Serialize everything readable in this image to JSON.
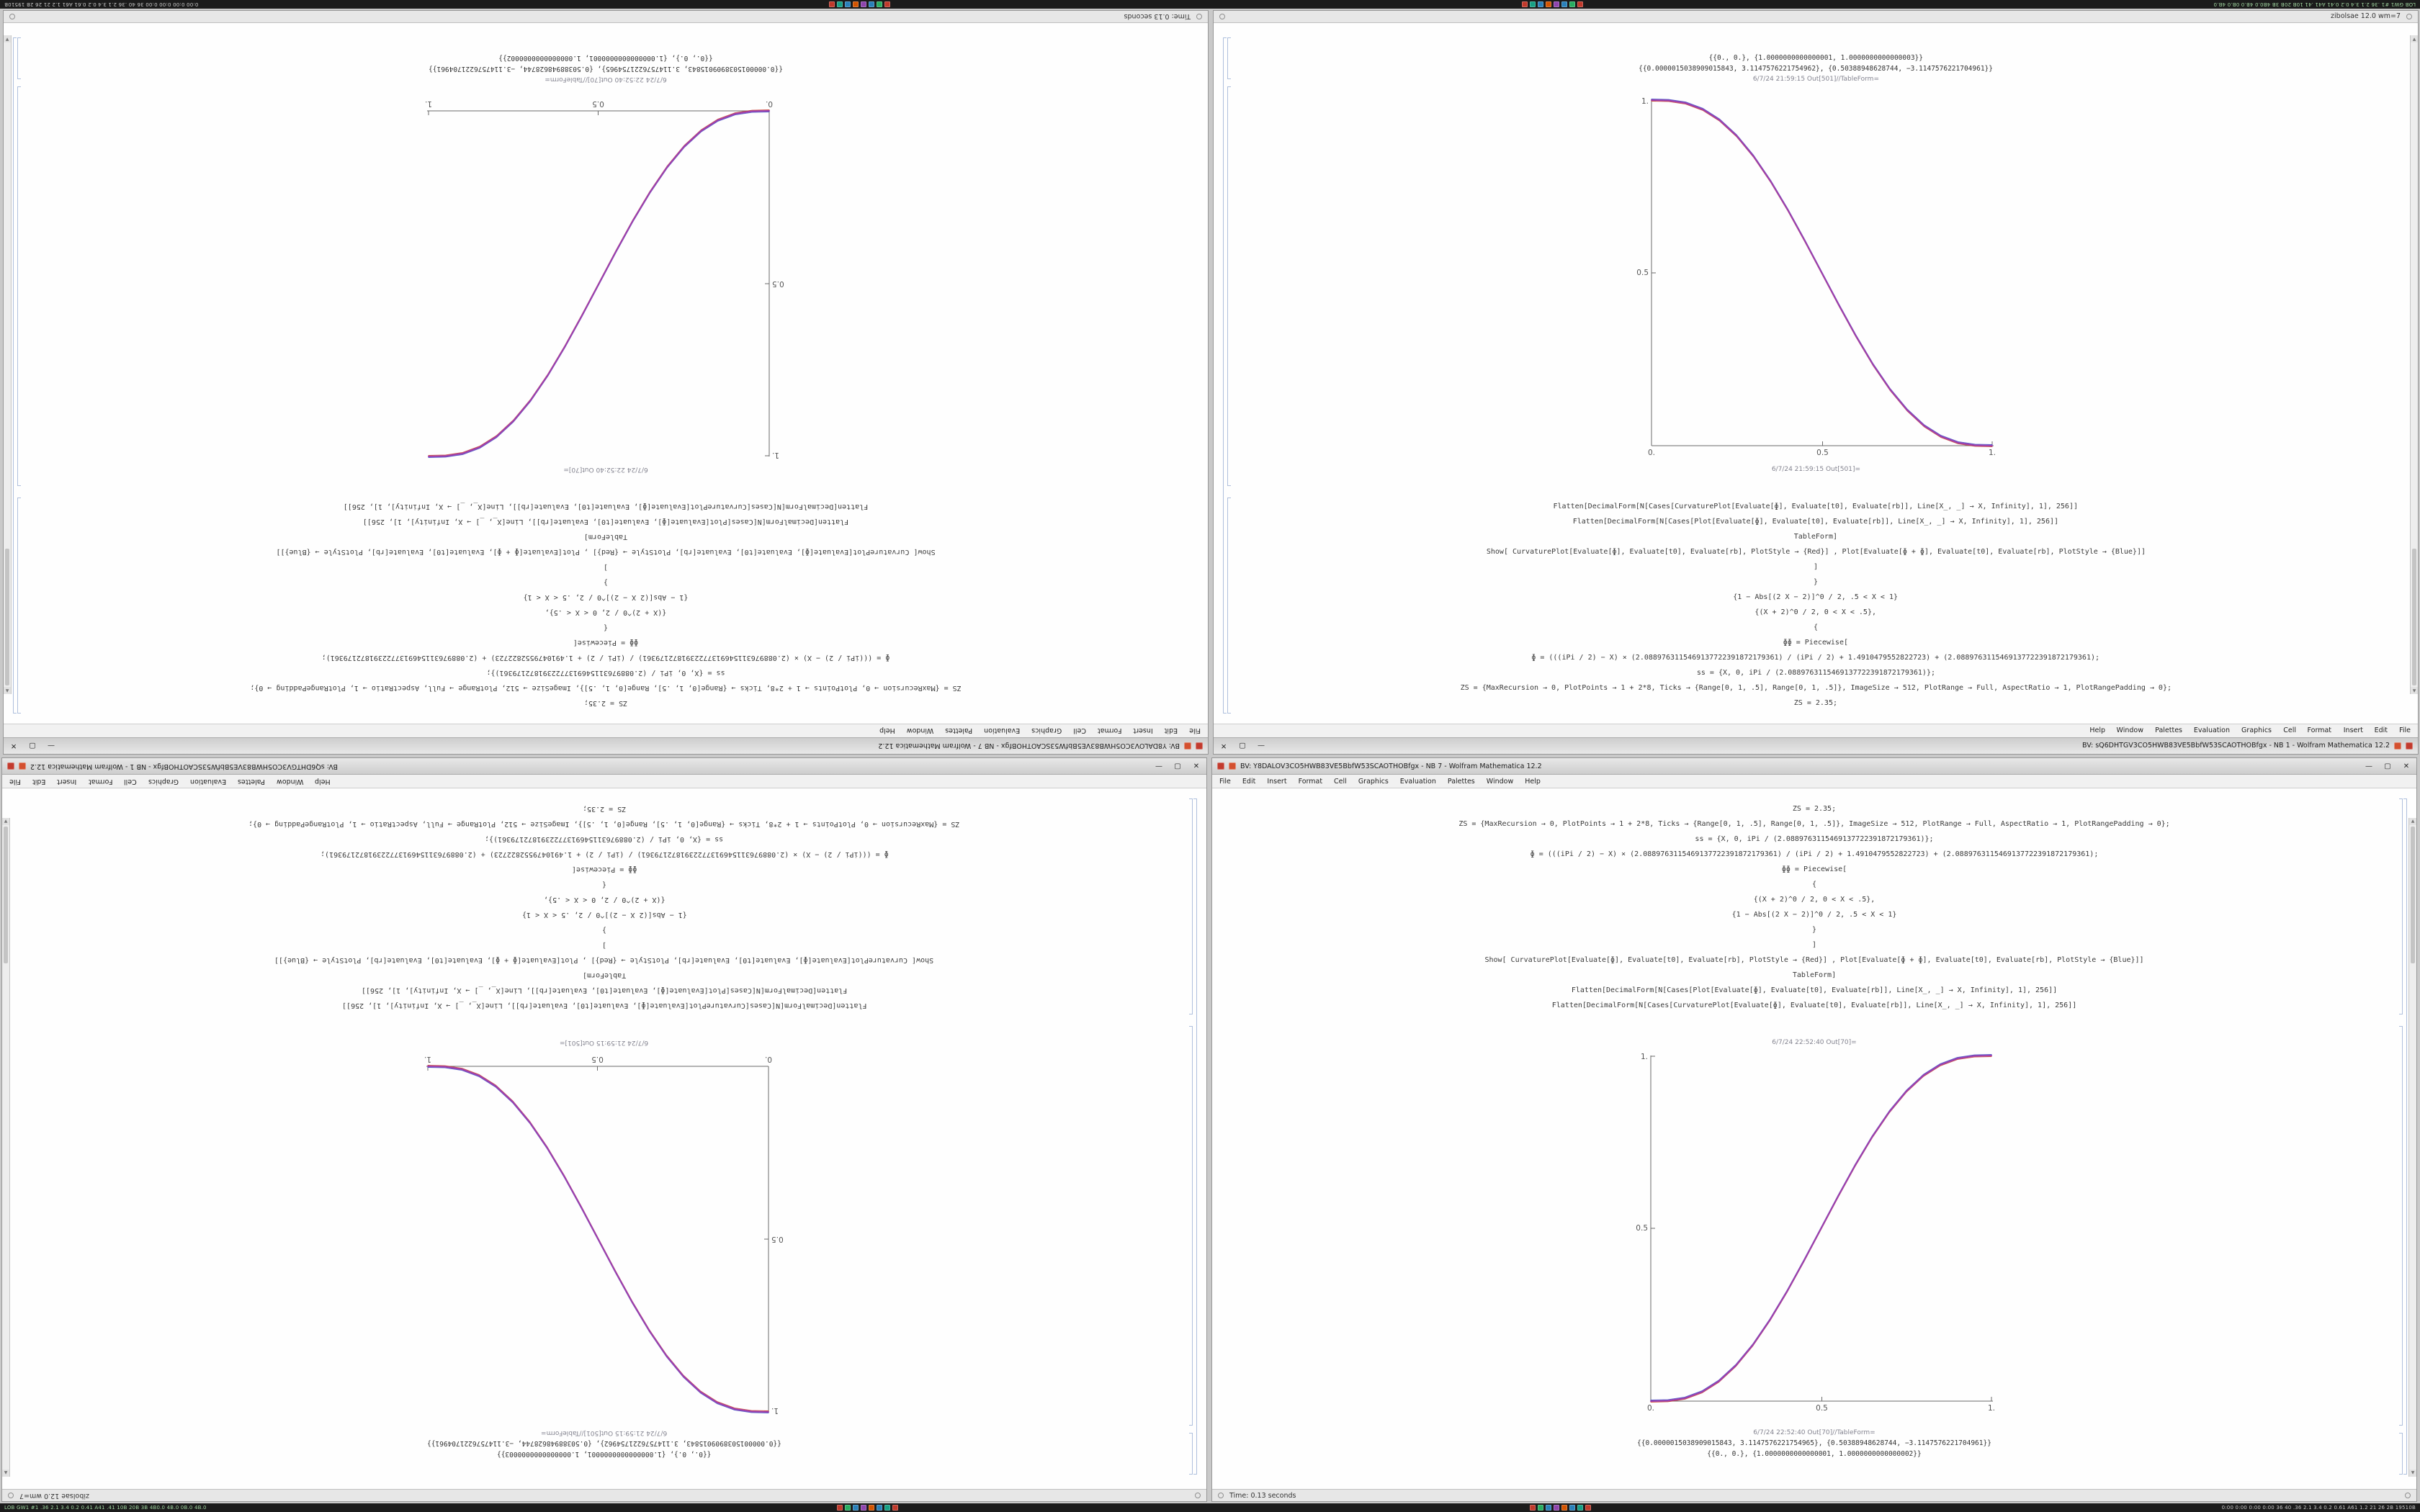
{
  "taskbar": {
    "left_text": "LOB GW1 #1 .36 2.1 3.4 0.2 0.41 A41 .41 10B 20B 3B 4B0.0 4B.0 0B.0 4B.0",
    "right_text": "0:00 0:00 0:00 0:00 36 40 .36 2.1 3.4 0.2 0.61 A61 1.2 21 26 2B 19510B",
    "icons": [
      {
        "name": "app-icon-1",
        "color": "#c0392b"
      },
      {
        "name": "app-icon-2",
        "color": "#27ae60"
      },
      {
        "name": "app-icon-3",
        "color": "#2980b9"
      },
      {
        "name": "app-icon-4",
        "color": "#8e44ad"
      },
      {
        "name": "app-icon-5",
        "color": "#d35400"
      },
      {
        "name": "app-icon-6",
        "color": "#2980b9"
      },
      {
        "name": "app-icon-7",
        "color": "#16a085"
      },
      {
        "name": "app-icon-8",
        "color": "#c0392b"
      }
    ]
  },
  "menu": {
    "items": [
      "File",
      "Edit",
      "Insert",
      "Format",
      "Cell",
      "Graphics",
      "Evaluation",
      "Palettes",
      "Window",
      "Help"
    ]
  },
  "controls": {
    "minimize": "—",
    "maximize": "▢",
    "close": "✕"
  },
  "window_a": {
    "title": "BV: sQ6DHTGV3CO5HWB83VE5BbfW53SCAOTHOBfgx - NB 1 - Wolfram Mathematica 12.2",
    "status_left": "zibolsae 12.0 wm=7",
    "out_label": "6/7/24 21:59:15 Out[501]=",
    "tableform_label": "6/7/24 21:59:15 Out[501]//TableForm=",
    "code_lines": [
      "ZS = 2.35;",
      "ZS = {MaxRecursion → 0, PlotPoints → 1 + 2*8, Ticks → {Range[0, 1, .5], Range[0, 1, .5]}, ImageSize → 512, PlotRange → Full, AspectRatio → 1, PlotRangePadding → 0};",
      "ss = {X, 0, iPi / (2.0889763115469137722391872179361)};",
      "ɸ = (((iPi / 2) − X) × (2.0889763115469137722391872179361) / (iPi / 2) + 1.4910479552822723) + (2.0889763115469137722391872179361);",
      "ɸɸ = Piecewise[",
      "{",
      "{(X + 2)^0 / 2, 0 < X < .5},",
      "{1 − Abs[(2 X − 2)]^0 / 2, .5 < X < 1}",
      "}",
      "]",
      "Show[ CurvaturePlot[Evaluate[ɸ], Evaluate[t0], Evaluate[rb], PlotStyle → {Red}] , Plot[Evaluate[ɸ + ɸ], Evaluate[t0], Evaluate[rb], PlotStyle → {Blue}]]",
      "TableForm]",
      "Flatten[DecimalForm[N[Cases[Plot[Evaluate[ɸ], Evaluate[t0], Evaluate[rb]], Line[X_, _] → X, Infinity], 1], 256]]",
      "Flatten[DecimalForm[N[Cases[CurvaturePlot[Evaluate[ɸ], Evaluate[t0], Evaluate[rb]], Line[X_, _] → X, Infinity], 1], 256]]"
    ],
    "out_rows": [
      "{{0.0000015038909015843, 3.1147576221754962}, {0.50388948628744, −3.1147576221704961}}",
      "{{0., 0.}, {1.0000000000000001, 1.0000000000000003}}"
    ]
  },
  "window_b": {
    "title": "BV: Y8DALOV3CO5HWB83VE5BbfW53SCAOTHOBfgx - NB 7 - Wolfram Mathematica 12.2",
    "status_left": "Time: 0.13 seconds",
    "out_label": "6/7/24 22:52:40 Out[70]=",
    "tableform_label": "6/7/24 22:52:40 Out[70]//TableForm=",
    "code_lines": [
      "ZS = 2.35;",
      "ZS = {MaxRecursion → 0, PlotPoints → 1 + 2*8, Ticks → {Range[0, 1, .5], Range[0, 1, .5]}, ImageSize → 512, PlotRange → Full, AspectRatio → 1, PlotRangePadding → 0};",
      "ss = {X, 0, iPi / (2.0889763115469137722391872179361)};",
      "ɸ = (((iPi / 2) − X) × (2.0889763115469137722391872179361) / (iPi / 2) + 1.4910479552822723) + (2.0889763115469137722391872179361);",
      "ɸɸ = Piecewise[",
      "{",
      "{(X + 2)^0 / 2, 0 < X < .5},",
      "{1 − Abs[(2 X − 2)]^0 / 2, .5 < X < 1}",
      "}",
      "]",
      "Show[ CurvaturePlot[Evaluate[ɸ], Evaluate[t0], Evaluate[rb], PlotStyle → {Red}] , Plot[Evaluate[ɸ + ɸ], Evaluate[t0], Evaluate[rb], PlotStyle → {Blue}]]",
      "TableForm]",
      "Flatten[DecimalForm[N[Cases[Plot[Evaluate[ɸ], Evaluate[t0], Evaluate[rb]], Line[X_, _] → X, Infinity], 1], 256]]",
      "Flatten[DecimalForm[N[Cases[CurvaturePlot[Evaluate[ɸ], Evaluate[t0], Evaluate[rb]], Line[X_, _] → X, Infinity], 1], 256]]"
    ],
    "out_rows": [
      "{{0.0000015038909015843, 3.1147576221754965}, {0.50388948628744, −3.1147576221704961}}",
      "{{0., 0.}, {1.0000000000000001, 1.0000000000000002}}"
    ]
  },
  "chart_data": [
    {
      "id": "descending-sigmoid",
      "type": "line",
      "title": "",
      "xlabel": "",
      "ylabel": "",
      "xlim": [
        0,
        1
      ],
      "ylim": [
        0,
        1
      ],
      "xticks": [
        "0.",
        "0.5",
        "1."
      ],
      "yticks": [
        "0.5",
        "1."
      ],
      "grid": false,
      "legend": "none",
      "blend_color": "#9b3fae",
      "x": [
        0,
        0.05,
        0.1,
        0.15,
        0.2,
        0.25,
        0.3,
        0.35,
        0.4,
        0.45,
        0.5,
        0.55,
        0.6,
        0.65,
        0.7,
        0.75,
        0.8,
        0.85,
        0.9,
        0.95,
        1
      ],
      "series": [
        {
          "name": "CurvaturePlot (Red)",
          "color": "#c8372f",
          "y": [
            1,
            0.9988,
            0.9914,
            0.9734,
            0.9421,
            0.8965,
            0.8369,
            0.7648,
            0.6826,
            0.5931,
            0.5,
            0.4069,
            0.3174,
            0.2352,
            0.1631,
            0.1035,
            0.0579,
            0.0266,
            0.0086,
            0.0012,
            0
          ]
        },
        {
          "name": "Plot (Blue)",
          "color": "#3b47c4",
          "y": [
            1,
            0.9988,
            0.9914,
            0.9734,
            0.9421,
            0.8965,
            0.8369,
            0.7648,
            0.6826,
            0.5931,
            0.5,
            0.4069,
            0.3174,
            0.2352,
            0.1631,
            0.1035,
            0.0579,
            0.0266,
            0.0086,
            0.0012,
            0
          ]
        }
      ]
    },
    {
      "id": "ascending-sigmoid",
      "type": "line",
      "title": "",
      "xlabel": "",
      "ylabel": "",
      "xlim": [
        0,
        1
      ],
      "ylim": [
        0,
        1
      ],
      "xticks": [
        "0.",
        "0.5",
        "1."
      ],
      "yticks": [
        "0.5",
        "1."
      ],
      "grid": false,
      "legend": "none",
      "blend_color": "#9b3fae",
      "x": [
        0,
        0.05,
        0.1,
        0.15,
        0.2,
        0.25,
        0.3,
        0.35,
        0.4,
        0.45,
        0.5,
        0.55,
        0.6,
        0.65,
        0.7,
        0.75,
        0.8,
        0.85,
        0.9,
        0.95,
        1
      ],
      "series": [
        {
          "name": "CurvaturePlot (Red)",
          "color": "#c8372f",
          "y": [
            0,
            0.0012,
            0.0086,
            0.0266,
            0.0579,
            0.1035,
            0.1631,
            0.2352,
            0.3174,
            0.4069,
            0.5,
            0.5931,
            0.6826,
            0.7648,
            0.8369,
            0.8965,
            0.9421,
            0.9734,
            0.9914,
            0.9988,
            1
          ]
        },
        {
          "name": "Plot (Blue)",
          "color": "#3b47c4",
          "y": [
            0,
            0.0012,
            0.0086,
            0.0266,
            0.0579,
            0.1035,
            0.1631,
            0.2352,
            0.3174,
            0.4069,
            0.5,
            0.5931,
            0.6826,
            0.7648,
            0.8369,
            0.8965,
            0.9421,
            0.9734,
            0.9914,
            0.9988,
            1
          ]
        }
      ]
    }
  ]
}
